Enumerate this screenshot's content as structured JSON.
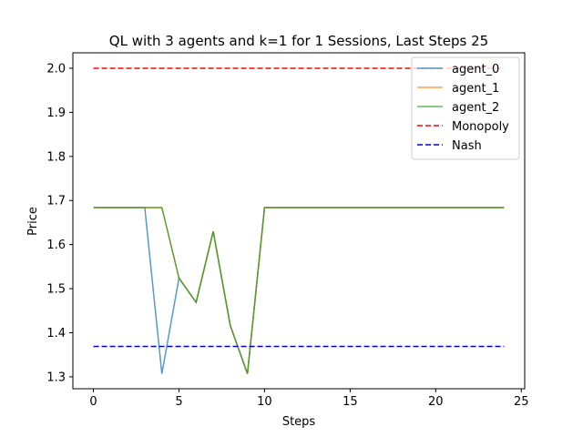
{
  "chart_data": {
    "type": "line",
    "title": "QL with 3 agents and k=1 for 1 Sessions, Last Steps 25",
    "xlabel": "Steps",
    "ylabel": "Price",
    "xlim": [
      -1.2,
      25.2
    ],
    "ylim": [
      1.273,
      2.035
    ],
    "xticks": [
      0,
      5,
      10,
      15,
      20,
      25
    ],
    "yticks": [
      1.3,
      1.4,
      1.5,
      1.6,
      1.7,
      1.8,
      1.9,
      2.0
    ],
    "x": [
      0,
      1,
      2,
      3,
      4,
      5,
      6,
      7,
      8,
      9,
      10,
      11,
      12,
      13,
      14,
      15,
      16,
      17,
      18,
      19,
      20,
      21,
      22,
      23,
      24
    ],
    "grid": false,
    "legend_position": "top-right",
    "series": [
      {
        "name": "agent_0",
        "color": "#1f77b4",
        "style": "solid",
        "alpha": 0.75,
        "values": [
          1.684,
          1.684,
          1.684,
          1.684,
          1.307,
          1.524,
          1.469,
          1.63,
          1.416,
          1.307,
          1.684,
          1.684,
          1.684,
          1.684,
          1.684,
          1.684,
          1.684,
          1.684,
          1.684,
          1.684,
          1.684,
          1.684,
          1.684,
          1.684,
          1.684
        ]
      },
      {
        "name": "agent_1",
        "color": "#ff7f0e",
        "style": "solid",
        "alpha": 0.75,
        "values": [
          1.684,
          1.684,
          1.684,
          1.684,
          1.684,
          1.524,
          1.469,
          1.63,
          1.416,
          1.307,
          1.684,
          1.684,
          1.684,
          1.684,
          1.684,
          1.684,
          1.684,
          1.684,
          1.684,
          1.684,
          1.684,
          1.684,
          1.684,
          1.684,
          1.684
        ]
      },
      {
        "name": "agent_2",
        "color": "#2ca02c",
        "style": "solid",
        "alpha": 0.75,
        "values": [
          1.684,
          1.684,
          1.684,
          1.684,
          1.684,
          1.524,
          1.469,
          1.63,
          1.416,
          1.307,
          1.684,
          1.684,
          1.684,
          1.684,
          1.684,
          1.684,
          1.684,
          1.684,
          1.684,
          1.684,
          1.684,
          1.684,
          1.684,
          1.684,
          1.684
        ]
      },
      {
        "name": "Monopoly",
        "color": "#ff0000",
        "style": "dashed",
        "alpha": 1,
        "values": [
          2.0,
          2.0,
          2.0,
          2.0,
          2.0,
          2.0,
          2.0,
          2.0,
          2.0,
          2.0,
          2.0,
          2.0,
          2.0,
          2.0,
          2.0,
          2.0,
          2.0,
          2.0,
          2.0,
          2.0,
          2.0,
          2.0,
          2.0,
          2.0,
          2.0
        ]
      },
      {
        "name": "Nash",
        "color": "#0000cc",
        "style": "dashed",
        "alpha": 1,
        "values": [
          1.369,
          1.369,
          1.369,
          1.369,
          1.369,
          1.369,
          1.369,
          1.369,
          1.369,
          1.369,
          1.369,
          1.369,
          1.369,
          1.369,
          1.369,
          1.369,
          1.369,
          1.369,
          1.369,
          1.369,
          1.369,
          1.369,
          1.369,
          1.369,
          1.369
        ]
      }
    ]
  }
}
